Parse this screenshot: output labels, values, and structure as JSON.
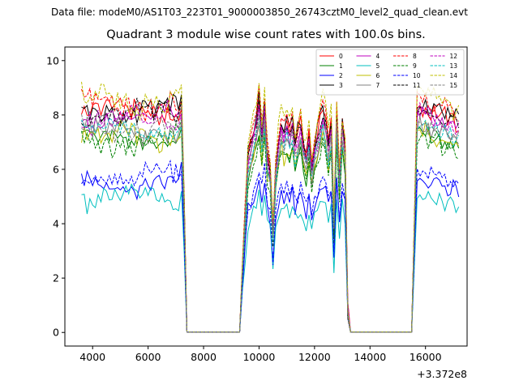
{
  "figure": {
    "suptitle": "Data file: modeM0/AS1T03_223T01_9000003850_26743cztM0_level2_quad_clean.evt"
  },
  "chart_data": {
    "type": "line",
    "title": "Quadrant 3 module wise count rates with 100.0s bins.",
    "xlabel": "",
    "ylabel": "",
    "x_offset_label": "+3.372e8",
    "xlim": [
      3000,
      17500
    ],
    "ylim": [
      -0.5,
      10.5
    ],
    "x_ticks": [
      4000,
      6000,
      8000,
      10000,
      12000,
      14000,
      16000
    ],
    "y_ticks": [
      0,
      2,
      4,
      6,
      8,
      10
    ],
    "grid": false,
    "legend_position": "top-right",
    "legend_columns": 4,
    "x_segments": [
      {
        "from": 3600,
        "to": 7300,
        "step": 100
      },
      {
        "from": 7400,
        "to": 9300,
        "step": 100
      },
      {
        "from": 9400,
        "to": 13200,
        "step": 100
      },
      {
        "from": 13300,
        "to": 15500,
        "step": 100
      },
      {
        "from": 15600,
        "to": 17200,
        "step": 100
      }
    ],
    "active_windows": [
      [
        3600,
        7300
      ],
      [
        9400,
        13200
      ],
      [
        15600,
        17200
      ]
    ],
    "profile": {
      "comment_free": true,
      "second_window_shape": [
        [
          9400,
          0.3
        ],
        [
          9500,
          0.55
        ],
        [
          9600,
          0.8
        ],
        [
          9700,
          0.85
        ],
        [
          9800,
          0.9
        ],
        [
          9900,
          0.95
        ],
        [
          10000,
          1.05
        ],
        [
          10100,
          0.9
        ],
        [
          10200,
          1.05
        ],
        [
          10300,
          0.8
        ],
        [
          10400,
          0.75
        ],
        [
          10500,
          0.45
        ],
        [
          10600,
          0.75
        ],
        [
          10700,
          0.85
        ],
        [
          10800,
          0.95
        ],
        [
          10900,
          0.9
        ],
        [
          11000,
          0.95
        ],
        [
          11100,
          0.9
        ],
        [
          11200,
          0.95
        ],
        [
          11300,
          0.85
        ],
        [
          11400,
          0.9
        ],
        [
          11500,
          0.95
        ],
        [
          11600,
          0.85
        ],
        [
          11700,
          0.8
        ],
        [
          11800,
          0.9
        ],
        [
          11900,
          0.75
        ],
        [
          12000,
          0.85
        ],
        [
          12100,
          0.9
        ],
        [
          12200,
          0.95
        ],
        [
          12300,
          1.0
        ],
        [
          12400,
          0.95
        ],
        [
          12500,
          0.85
        ],
        [
          12600,
          0.95
        ],
        [
          12700,
          0.5
        ],
        [
          12800,
          1.0
        ],
        [
          12900,
          0.7
        ],
        [
          13000,
          0.95
        ],
        [
          13100,
          0.85
        ],
        [
          13200,
          0.1
        ]
      ]
    },
    "series": [
      {
        "name": "0",
        "color": "#ff0000",
        "dash": "solid",
        "level": 8.1,
        "amp": 0.3
      },
      {
        "name": "1",
        "color": "#008000",
        "dash": "solid",
        "level": 7.1,
        "amp": 0.3
      },
      {
        "name": "2",
        "color": "#0000ff",
        "dash": "solid",
        "level": 5.5,
        "amp": 0.3
      },
      {
        "name": "3",
        "color": "#000000",
        "dash": "solid",
        "level": 8.2,
        "amp": 0.35
      },
      {
        "name": "4",
        "color": "#bf00bf",
        "dash": "solid",
        "level": 7.9,
        "amp": 0.3
      },
      {
        "name": "5",
        "color": "#00bfbf",
        "dash": "solid",
        "level": 4.9,
        "amp": 0.3
      },
      {
        "name": "6",
        "color": "#bfbf00",
        "dash": "solid",
        "level": 7.2,
        "amp": 0.3
      },
      {
        "name": "7",
        "color": "#808080",
        "dash": "solid",
        "level": 7.4,
        "amp": 0.3
      },
      {
        "name": "8",
        "color": "#ff0000",
        "dash": "dashed",
        "level": 8.4,
        "amp": 0.3
      },
      {
        "name": "9",
        "color": "#008000",
        "dash": "dashed",
        "level": 7.0,
        "amp": 0.3
      },
      {
        "name": "10",
        "color": "#0000ff",
        "dash": "dashed",
        "level": 5.7,
        "amp": 0.3
      },
      {
        "name": "11",
        "color": "#000000",
        "dash": "dashed",
        "level": 8.0,
        "amp": 0.3
      },
      {
        "name": "12",
        "color": "#bf00bf",
        "dash": "dashed",
        "level": 7.8,
        "amp": 0.3
      },
      {
        "name": "13",
        "color": "#00bfbf",
        "dash": "dashed",
        "level": 7.5,
        "amp": 0.3
      },
      {
        "name": "14",
        "color": "#bfbf00",
        "dash": "dashed",
        "level": 8.6,
        "amp": 0.4
      },
      {
        "name": "15",
        "color": "#808080",
        "dash": "dashed",
        "level": 7.6,
        "amp": 0.3
      }
    ]
  }
}
